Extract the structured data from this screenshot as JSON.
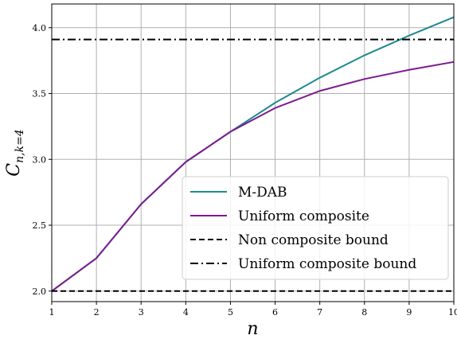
{
  "chart_data": {
    "type": "line",
    "xlabel": "n",
    "ylabel_main": "C",
    "ylabel_sub": "n,k=4",
    "x": [
      1,
      2,
      3,
      4,
      5,
      6,
      7,
      8,
      9,
      10
    ],
    "xlim": [
      1,
      10
    ],
    "ylim": [
      1.92,
      4.18
    ],
    "xticks": [
      1,
      2,
      3,
      4,
      5,
      6,
      7,
      8,
      9,
      10
    ],
    "yticks": [
      "2.0",
      "2.5",
      "3.0",
      "3.5",
      "4.0"
    ],
    "grid": true,
    "legend_position": "lower-right",
    "series": [
      {
        "name": "M-DAB",
        "color": "#1f8a8f",
        "style": "solid",
        "values": [
          2.0,
          2.25,
          2.66,
          2.98,
          3.21,
          3.43,
          3.62,
          3.79,
          3.94,
          4.08
        ]
      },
      {
        "name": "Uniform composite",
        "color": "#7b1a8f",
        "style": "solid",
        "values": [
          2.0,
          2.25,
          2.66,
          2.98,
          3.21,
          3.39,
          3.52,
          3.61,
          3.68,
          3.74
        ]
      },
      {
        "name": "Non composite bound",
        "color": "#000000",
        "style": "dashed",
        "values": [
          2.0,
          2.0,
          2.0,
          2.0,
          2.0,
          2.0,
          2.0,
          2.0,
          2.0,
          2.0
        ]
      },
      {
        "name": "Uniform composite bound",
        "color": "#000000",
        "style": "dashdot",
        "values": [
          3.91,
          3.91,
          3.91,
          3.91,
          3.91,
          3.91,
          3.91,
          3.91,
          3.91,
          3.91
        ]
      }
    ]
  }
}
